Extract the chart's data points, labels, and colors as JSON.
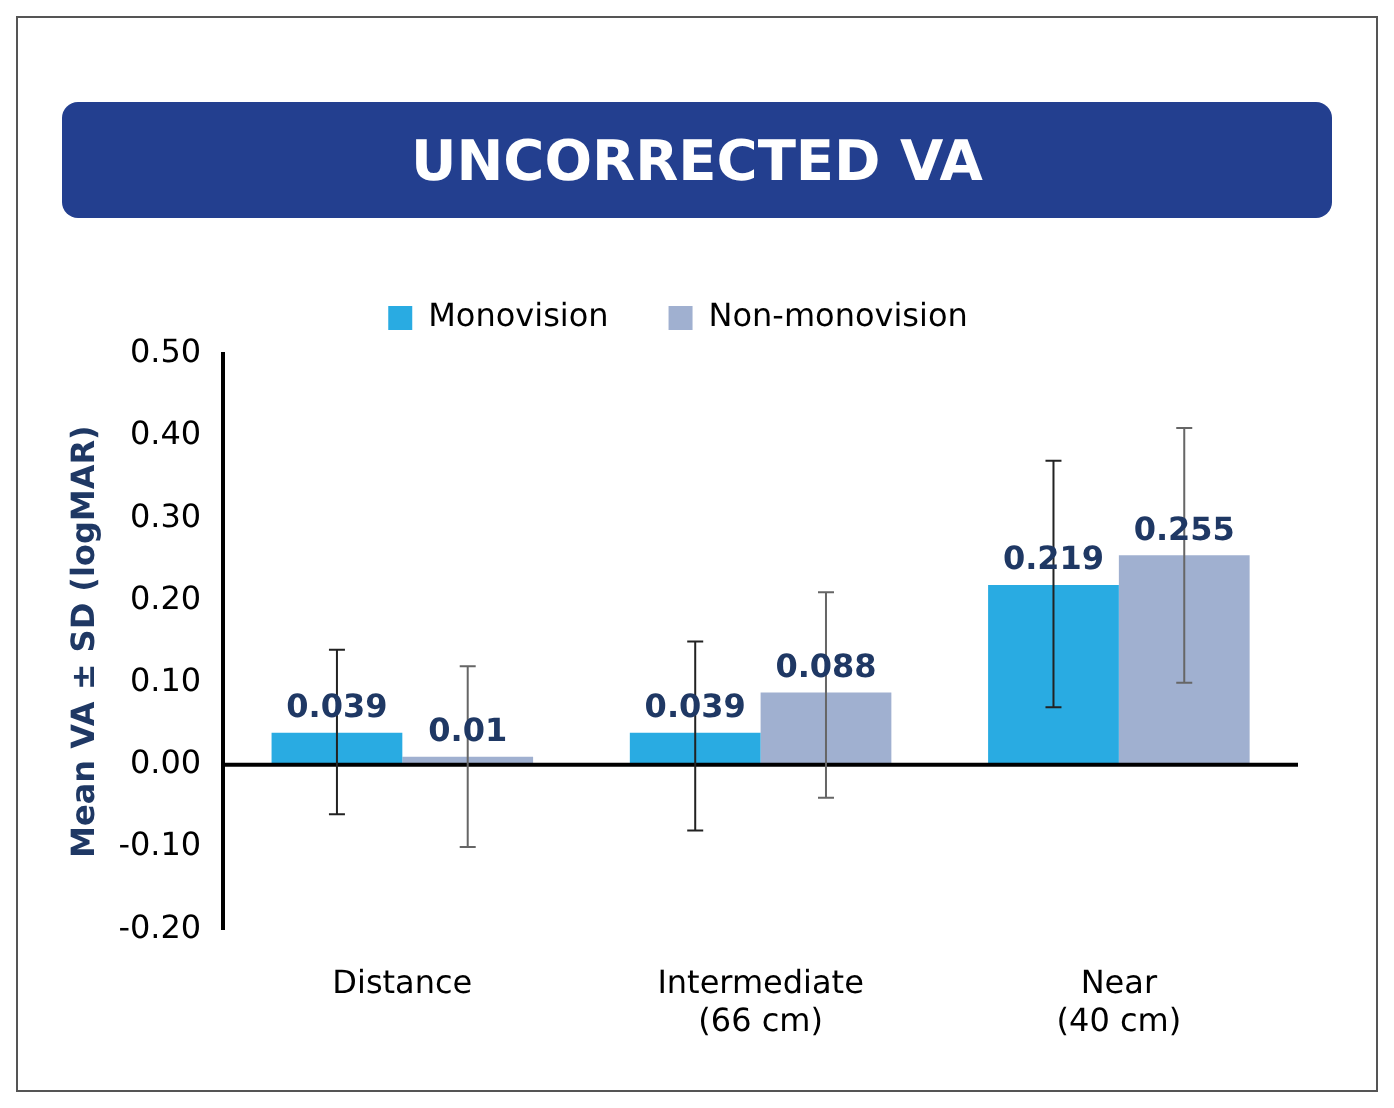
{
  "chart_data": {
    "type": "bar",
    "title": "UNCORRECTED VA",
    "ylabel": "Mean VA ± SD (logMAR)",
    "categories": [
      "Distance",
      "Intermediate\n(66 cm)",
      "Near\n(40 cm)"
    ],
    "series": [
      {
        "name": "Monovision",
        "color": "#29abe2",
        "values": [
          0.039,
          0.039,
          0.219
        ],
        "errors": [
          [
            -0.06,
            0.14
          ],
          [
            -0.08,
            0.15
          ],
          [
            0.07,
            0.37
          ]
        ]
      },
      {
        "name": "Non-monovision",
        "color": "#a0b0d0",
        "values": [
          0.01,
          0.088,
          0.255
        ],
        "errors": [
          [
            -0.1,
            0.12
          ],
          [
            -0.04,
            0.21
          ],
          [
            0.1,
            0.41
          ]
        ]
      }
    ],
    "ylim": [
      -0.2,
      0.5
    ],
    "yticks": [
      {
        "value": -0.2,
        "label": "-0.20"
      },
      {
        "value": -0.1,
        "label": "-0.10"
      },
      {
        "value": 0,
        "label": "0.00"
      },
      {
        "value": 0.1,
        "label": "0.10"
      },
      {
        "value": 0.2,
        "label": "0.20"
      },
      {
        "value": 0.3,
        "label": "0.30"
      },
      {
        "value": 0.4,
        "label": "0.40"
      },
      {
        "value": 0.5,
        "label": "0.50"
      }
    ],
    "ref_lines": [
      {
        "axis": "y",
        "value": 0,
        "color": "#000000"
      }
    ],
    "grid": false,
    "legend": "top",
    "data_labels": true
  }
}
